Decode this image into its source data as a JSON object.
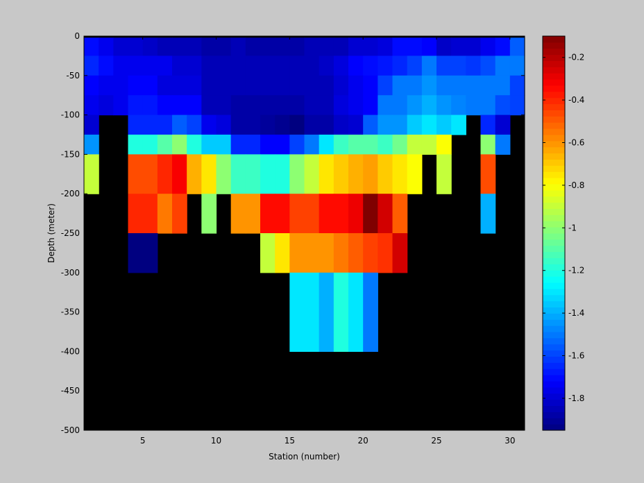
{
  "chart_data": {
    "type": "heatmap",
    "title": "",
    "xlabel": "Station (number)",
    "ylabel": "Depth (meter)",
    "xlim": [
      1,
      31
    ],
    "ylim": [
      -500,
      0
    ],
    "x_ticks": [
      5,
      10,
      15,
      20,
      25,
      30
    ],
    "y_ticks": [
      0,
      -50,
      -100,
      -150,
      -200,
      -250,
      -300,
      -350,
      -400,
      -450,
      -500
    ],
    "colorbar": {
      "colormap": "jet",
      "range": [
        -1.95,
        -0.1
      ],
      "ticks": [
        -0.2,
        -0.4,
        -0.6,
        -0.8,
        -1,
        -1.2,
        -1.4,
        -1.6,
        -1.8
      ]
    },
    "missing_color": "#000000",
    "top_band_color": "#000000",
    "rows": [
      {
        "top": -2,
        "bottom": -25,
        "values": [
          -1.7,
          -1.75,
          -1.8,
          -1.8,
          -1.82,
          -1.85,
          -1.85,
          -1.85,
          -1.88,
          -1.88,
          -1.85,
          -1.88,
          -1.88,
          -1.88,
          -1.88,
          -1.85,
          -1.85,
          -1.85,
          -1.8,
          -1.8,
          -1.78,
          -1.7,
          -1.7,
          -1.72,
          -1.82,
          -1.8,
          -1.8,
          -1.75,
          -1.7,
          -1.55
        ]
      },
      {
        "top": -25,
        "bottom": -50,
        "values": [
          -1.65,
          -1.7,
          -1.75,
          -1.75,
          -1.75,
          -1.75,
          -1.8,
          -1.8,
          -1.85,
          -1.85,
          -1.85,
          -1.85,
          -1.85,
          -1.85,
          -1.85,
          -1.85,
          -1.82,
          -1.78,
          -1.72,
          -1.7,
          -1.68,
          -1.65,
          -1.6,
          -1.5,
          -1.6,
          -1.6,
          -1.62,
          -1.58,
          -1.5,
          -1.5
        ]
      },
      {
        "top": -50,
        "bottom": -75,
        "values": [
          -1.72,
          -1.75,
          -1.75,
          -1.72,
          -1.72,
          -1.78,
          -1.78,
          -1.78,
          -1.85,
          -1.85,
          -1.85,
          -1.85,
          -1.85,
          -1.85,
          -1.85,
          -1.85,
          -1.85,
          -1.8,
          -1.75,
          -1.72,
          -1.6,
          -1.5,
          -1.5,
          -1.45,
          -1.5,
          -1.5,
          -1.5,
          -1.5,
          -1.5,
          -1.6
        ]
      },
      {
        "top": -75,
        "bottom": -100,
        "values": [
          -1.75,
          -1.78,
          -1.75,
          -1.68,
          -1.68,
          -1.72,
          -1.72,
          -1.72,
          -1.85,
          -1.85,
          -1.88,
          -1.88,
          -1.88,
          -1.88,
          -1.88,
          -1.85,
          -1.85,
          -1.78,
          -1.75,
          -1.72,
          -1.5,
          -1.5,
          -1.45,
          -1.4,
          -1.45,
          -1.48,
          -1.5,
          -1.5,
          -1.58,
          -1.6
        ]
      },
      {
        "top": -100,
        "bottom": -125,
        "values": [
          -1.8,
          null,
          null,
          -1.65,
          -1.65,
          -1.65,
          -1.55,
          -1.6,
          -1.75,
          -1.78,
          -1.88,
          -1.88,
          -1.9,
          -1.92,
          -1.95,
          -1.88,
          -1.88,
          -1.82,
          -1.8,
          -1.55,
          -1.45,
          -1.45,
          -1.35,
          -1.3,
          -1.35,
          -1.3,
          null,
          -1.65,
          -1.8,
          null
        ]
      },
      {
        "top": -125,
        "bottom": -150,
        "values": [
          -1.45,
          null,
          null,
          -1.2,
          -1.2,
          -1.1,
          -1.0,
          -1.2,
          -1.35,
          -1.35,
          -1.65,
          -1.65,
          -1.72,
          -1.72,
          -1.6,
          -1.5,
          -1.3,
          -1.15,
          -1.1,
          -1.1,
          -1.15,
          -1.05,
          -0.9,
          -0.9,
          -0.8,
          null,
          null,
          -1.0,
          -1.5,
          null
        ]
      },
      {
        "top": -150,
        "bottom": -200,
        "values": [
          -0.9,
          null,
          null,
          -0.47,
          -0.47,
          -0.4,
          -0.32,
          -0.65,
          -0.75,
          -1.0,
          -1.15,
          -1.15,
          -1.2,
          -1.2,
          -1.0,
          -0.9,
          -0.75,
          -0.7,
          -0.65,
          -0.62,
          -0.7,
          -0.75,
          -0.8,
          null,
          -0.9,
          null,
          null,
          -0.47,
          null,
          null
        ]
      },
      {
        "top": -200,
        "bottom": -250,
        "values": [
          null,
          null,
          null,
          -0.4,
          -0.4,
          -0.55,
          -0.45,
          null,
          -1.0,
          null,
          -0.6,
          -0.6,
          -0.35,
          -0.35,
          -0.45,
          -0.45,
          -0.35,
          -0.35,
          -0.3,
          -0.1,
          -0.25,
          -0.5,
          null,
          null,
          null,
          null,
          null,
          -1.4,
          null,
          null
        ]
      },
      {
        "top": -250,
        "bottom": -300,
        "values": [
          null,
          null,
          null,
          -1.95,
          -1.95,
          null,
          null,
          null,
          null,
          null,
          null,
          null,
          -0.9,
          -0.75,
          -0.6,
          -0.6,
          -0.6,
          -0.55,
          -0.5,
          -0.45,
          -0.42,
          -0.25,
          null,
          null,
          null,
          null,
          null,
          null,
          null,
          null
        ]
      },
      {
        "top": -300,
        "bottom": -400,
        "values": [
          null,
          null,
          null,
          null,
          null,
          null,
          null,
          null,
          null,
          null,
          null,
          null,
          null,
          null,
          -1.3,
          -1.3,
          -1.4,
          -1.2,
          -1.3,
          -1.5,
          null,
          null,
          null,
          null,
          null,
          null,
          null,
          null,
          null,
          null
        ]
      },
      {
        "top": -400,
        "bottom": -500,
        "values": [
          null,
          null,
          null,
          null,
          null,
          null,
          null,
          null,
          null,
          null,
          null,
          null,
          null,
          null,
          null,
          null,
          null,
          null,
          null,
          null,
          null,
          null,
          null,
          null,
          null,
          null,
          null,
          null,
          null,
          null
        ]
      }
    ]
  }
}
